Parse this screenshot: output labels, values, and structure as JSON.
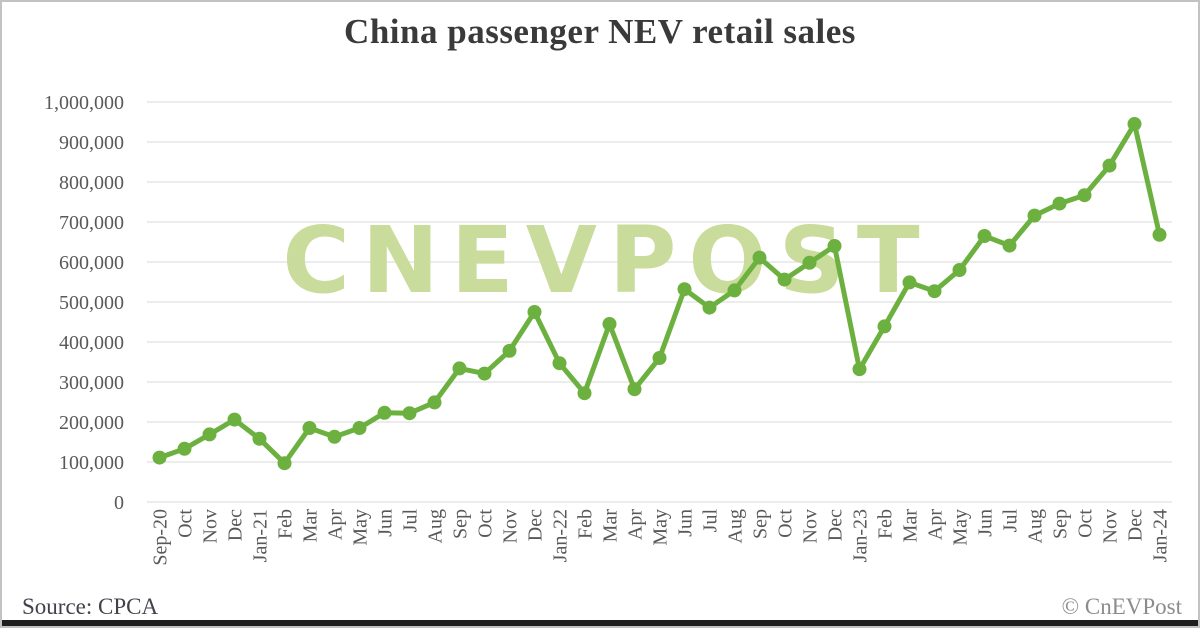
{
  "title": "China passenger NEV retail sales",
  "watermark": "CNEVPOST",
  "footer": {
    "source": "Source: CPCA",
    "copyright": "© CnEVPost"
  },
  "colors": {
    "line": "#6cb13f",
    "marker": "#6cb13f",
    "watermark": "#c9dc9b",
    "gridline": "#d9d9d9",
    "axis_text": "#595959",
    "title_text": "#3a3a3a",
    "source_text": "#42424a",
    "copyright_text": "#8c8c8c",
    "bottom_bar": "#1f1f1f"
  },
  "chart_data": {
    "type": "line",
    "title": "China passenger NEV retail sales",
    "xlabel": "",
    "ylabel": "",
    "ylim": [
      0,
      1000000
    ],
    "ytick_step": 100000,
    "ytick_labels": [
      "0",
      "100,000",
      "200,000",
      "300,000",
      "400,000",
      "500,000",
      "600,000",
      "700,000",
      "800,000",
      "900,000",
      "1,000,000"
    ],
    "grid": "horizontal",
    "legend": "none",
    "source": "CPCA",
    "categories": [
      "Sep-20",
      "Oct",
      "Nov",
      "Dec",
      "Jan-21",
      "Feb",
      "Mar",
      "Apr",
      "May",
      "Jun",
      "Jul",
      "Aug",
      "Sep",
      "Oct",
      "Nov",
      "Dec",
      "Jan-22",
      "Feb",
      "Mar",
      "Apr",
      "May",
      "Jun",
      "Jul",
      "Aug",
      "Sep",
      "Oct",
      "Nov",
      "Dec",
      "Jan-23",
      "Feb",
      "Mar",
      "Apr",
      "May",
      "Jun",
      "Jul",
      "Aug",
      "Sep",
      "Oct",
      "Nov",
      "Dec",
      "Jan-24"
    ],
    "values": [
      111000,
      133000,
      169000,
      206000,
      158000,
      97000,
      185000,
      163000,
      185000,
      223000,
      222000,
      249000,
      334000,
      321000,
      378000,
      475000,
      347000,
      272000,
      445000,
      282000,
      360000,
      532000,
      486000,
      529000,
      611000,
      556000,
      598000,
      640000,
      332000,
      439000,
      549000,
      527000,
      580000,
      665000,
      641000,
      716000,
      746000,
      767000,
      841000,
      945000,
      668000
    ]
  }
}
